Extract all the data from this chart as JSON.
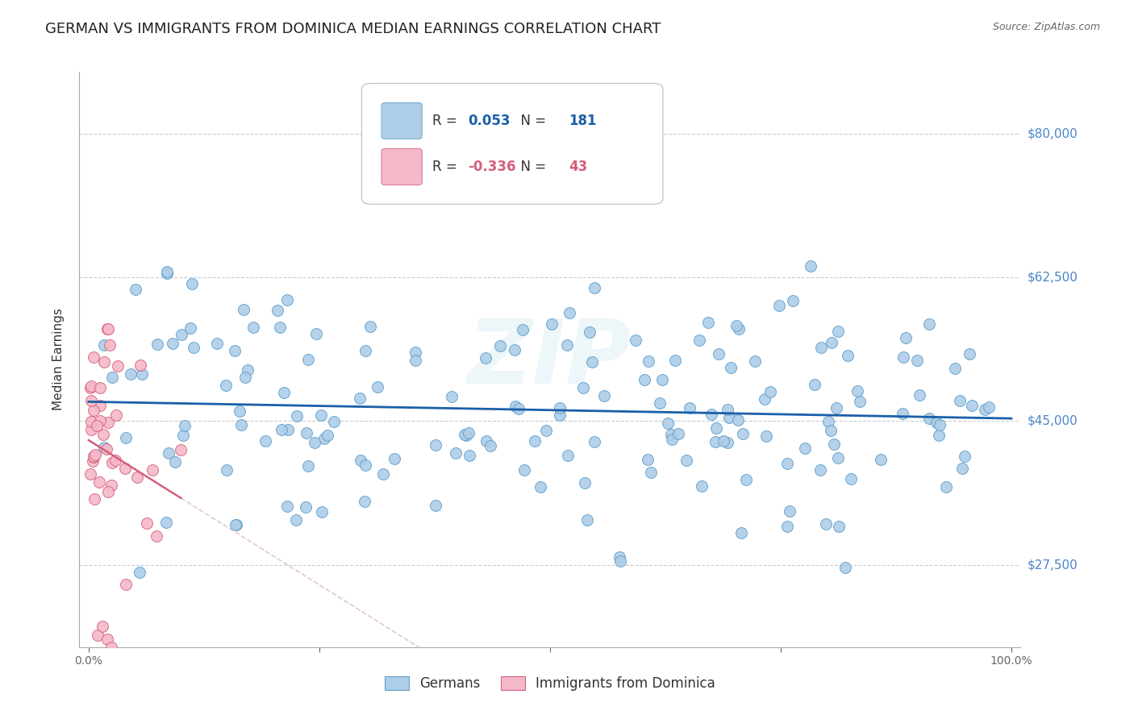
{
  "title": "GERMAN VS IMMIGRANTS FROM DOMINICA MEDIAN EARNINGS CORRELATION CHART",
  "source": "Source: ZipAtlas.com",
  "ylabel": "Median Earnings",
  "legend_labels": [
    "Germans",
    "Immigrants from Dominica"
  ],
  "blue_R": 0.053,
  "blue_N": 181,
  "pink_R": -0.336,
  "pink_N": 43,
  "blue_color": "#aecde8",
  "blue_edge": "#5b9ec9",
  "pink_color": "#f5b8c8",
  "pink_edge": "#d45f7a",
  "blue_line_color": "#1a5fa8",
  "pink_line_color": "#d45f7a",
  "pink_line_dashed_color": "#d8b0ba",
  "ylim_min": 17500,
  "ylim_max": 87500,
  "xlim_min": -0.01,
  "xlim_max": 1.01,
  "yticks": [
    27500,
    45000,
    62500,
    80000
  ],
  "ytick_labels": [
    "$27,500",
    "$45,000",
    "$62,500",
    "$80,000"
  ],
  "xticks": [
    0.0,
    0.25,
    0.5,
    0.75,
    1.0
  ],
  "xtick_labels": [
    "0.0%",
    "",
    "",
    "",
    "100.0%"
  ],
  "title_fontsize": 13,
  "axis_label_fontsize": 10,
  "tick_fontsize": 10,
  "marker_size": 100
}
